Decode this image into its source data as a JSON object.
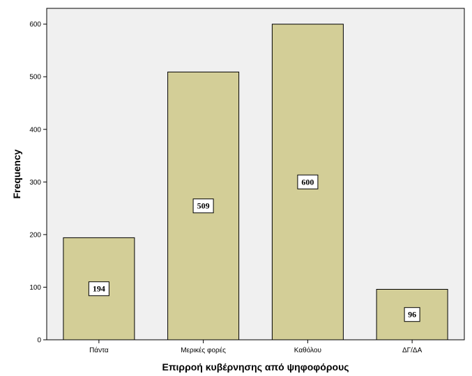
{
  "chart_data": {
    "type": "bar",
    "categories": [
      "Πάντα",
      "Μερικές φορές",
      "Καθόλου",
      "ΔΓ/ΔΑ"
    ],
    "values": [
      194,
      509,
      600,
      96
    ],
    "data_labels": [
      "194",
      "509",
      "600",
      "96"
    ],
    "title": "",
    "xlabel": "Επιρροή κυβέρνησης από ψηφοφόρους",
    "ylabel": "Frequency",
    "ylim": [
      0,
      630
    ],
    "yticks": [
      0,
      100,
      200,
      300,
      400,
      500,
      600
    ],
    "ytick_labels": [
      "0",
      "100",
      "200",
      "300",
      "400",
      "500",
      "600"
    ],
    "grid": false,
    "legend": "none",
    "colors": {
      "bar_fill": "#d3ce97",
      "bar_stroke": "#000000",
      "plot_background": "#f0f0f0",
      "label_box_fill": "#ffffff"
    }
  }
}
